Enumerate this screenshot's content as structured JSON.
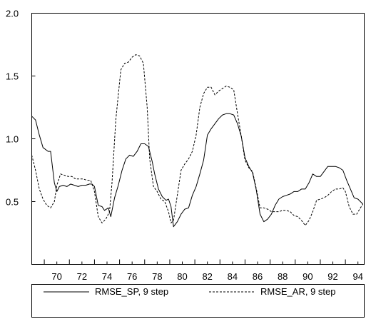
{
  "chart_data": {
    "type": "line",
    "title": "",
    "xlabel": "",
    "ylabel": "",
    "xlim": [
      69,
      95.5
    ],
    "ylim": [
      0,
      2.0
    ],
    "xticks": [
      "70",
      "72",
      "74",
      "76",
      "78",
      "80",
      "82",
      "84",
      "86",
      "88",
      "90",
      "92",
      "94"
    ],
    "yticks": [
      "0.5",
      "1.0",
      "1.5",
      "2.0"
    ],
    "grid": false,
    "legend_position": "bottom",
    "series": [
      {
        "name": "RMSE_SP, 9 step",
        "style": "solid",
        "color": "#000000",
        "x": [
          69.0,
          69.3,
          69.6,
          69.9,
          70.3,
          70.5,
          70.8,
          71.0,
          71.2,
          71.5,
          71.8,
          72.1,
          72.4,
          72.7,
          73.0,
          73.3,
          73.6,
          73.8,
          74.0,
          74.3,
          74.6,
          74.8,
          75.1,
          75.3,
          75.6,
          75.9,
          76.2,
          76.5,
          76.8,
          77.1,
          77.4,
          77.7,
          78.0,
          78.3,
          78.6,
          78.8,
          79.1,
          79.4,
          79.7,
          79.9,
          80.1,
          80.3,
          80.6,
          80.9,
          81.2,
          81.5,
          81.8,
          82.1,
          82.4,
          82.7,
          83.0,
          83.3,
          83.6,
          83.9,
          84.2,
          84.5,
          84.8,
          85.1,
          85.4,
          85.7,
          86.0,
          86.3,
          86.6,
          86.9,
          87.2,
          87.5,
          87.8,
          88.1,
          88.4,
          88.7,
          89.0,
          89.3,
          89.6,
          89.9,
          90.2,
          90.5,
          90.8,
          91.1,
          91.4,
          91.7,
          92.0,
          92.3,
          92.6,
          92.9,
          93.2,
          93.5,
          93.8,
          94.1,
          94.4,
          94.7,
          95.0,
          95.2,
          95.4
        ],
        "values": [
          1.18,
          1.15,
          1.03,
          0.93,
          0.9,
          0.9,
          0.65,
          0.58,
          0.62,
          0.63,
          0.62,
          0.64,
          0.63,
          0.62,
          0.63,
          0.63,
          0.64,
          0.64,
          0.62,
          0.47,
          0.46,
          0.43,
          0.45,
          0.38,
          0.53,
          0.63,
          0.75,
          0.84,
          0.87,
          0.86,
          0.9,
          0.96,
          0.96,
          0.94,
          0.82,
          0.72,
          0.6,
          0.54,
          0.51,
          0.52,
          0.46,
          0.3,
          0.34,
          0.4,
          0.44,
          0.45,
          0.55,
          0.62,
          0.72,
          0.83,
          1.03,
          1.08,
          1.12,
          1.16,
          1.19,
          1.2,
          1.2,
          1.19,
          1.12,
          1.02,
          0.85,
          0.78,
          0.73,
          0.59,
          0.4,
          0.34,
          0.36,
          0.4,
          0.47,
          0.52,
          0.54,
          0.55,
          0.56,
          0.58,
          0.58,
          0.6,
          0.6,
          0.65,
          0.72,
          0.7,
          0.7,
          0.74,
          0.78,
          0.78,
          0.78,
          0.77,
          0.75,
          0.67,
          0.6,
          0.53,
          0.52,
          0.5,
          0.48
        ]
      },
      {
        "name": "RMSE_AR, 9 step",
        "style": "dashed",
        "color": "#000000",
        "x": [
          69.0,
          69.3,
          69.6,
          69.9,
          70.2,
          70.5,
          70.8,
          71.0,
          71.3,
          71.6,
          71.9,
          72.2,
          72.5,
          72.8,
          73.1,
          73.4,
          73.7,
          74.0,
          74.3,
          74.6,
          74.9,
          75.2,
          75.4,
          75.7,
          75.9,
          76.1,
          76.4,
          76.7,
          77.0,
          77.3,
          77.6,
          77.9,
          78.2,
          78.4,
          78.7,
          79.0,
          79.3,
          79.6,
          79.9,
          80.1,
          80.3,
          80.6,
          80.9,
          81.2,
          81.5,
          81.8,
          82.1,
          82.4,
          82.7,
          83.0,
          83.3,
          83.6,
          83.9,
          84.2,
          84.5,
          84.8,
          85.1,
          85.4,
          85.7,
          86.0,
          86.3,
          86.6,
          86.9,
          87.2,
          87.5,
          87.8,
          88.1,
          88.4,
          88.7,
          89.0,
          89.3,
          89.6,
          89.9,
          90.2,
          90.5,
          90.8,
          91.1,
          91.4,
          91.7,
          92.0,
          92.3,
          92.6,
          92.9,
          93.2,
          93.5,
          93.8,
          94.0,
          94.3,
          94.6,
          94.9,
          95.2,
          95.4
        ],
        "values": [
          0.87,
          0.75,
          0.6,
          0.52,
          0.47,
          0.45,
          0.5,
          0.63,
          0.72,
          0.71,
          0.7,
          0.7,
          0.68,
          0.68,
          0.68,
          0.67,
          0.67,
          0.58,
          0.38,
          0.33,
          0.36,
          0.42,
          0.65,
          1.15,
          1.35,
          1.55,
          1.6,
          1.61,
          1.65,
          1.67,
          1.66,
          1.6,
          1.25,
          0.84,
          0.62,
          0.58,
          0.52,
          0.5,
          0.42,
          0.33,
          0.35,
          0.55,
          0.75,
          0.8,
          0.84,
          0.9,
          1.03,
          1.25,
          1.36,
          1.41,
          1.41,
          1.35,
          1.38,
          1.4,
          1.42,
          1.41,
          1.39,
          1.2,
          1.02,
          0.83,
          0.77,
          0.74,
          0.6,
          0.45,
          0.45,
          0.44,
          0.42,
          0.42,
          0.42,
          0.43,
          0.43,
          0.42,
          0.39,
          0.38,
          0.35,
          0.31,
          0.35,
          0.42,
          0.51,
          0.52,
          0.53,
          0.55,
          0.58,
          0.6,
          0.6,
          0.61,
          0.58,
          0.46,
          0.4,
          0.4,
          0.45,
          0.48
        ]
      }
    ]
  }
}
